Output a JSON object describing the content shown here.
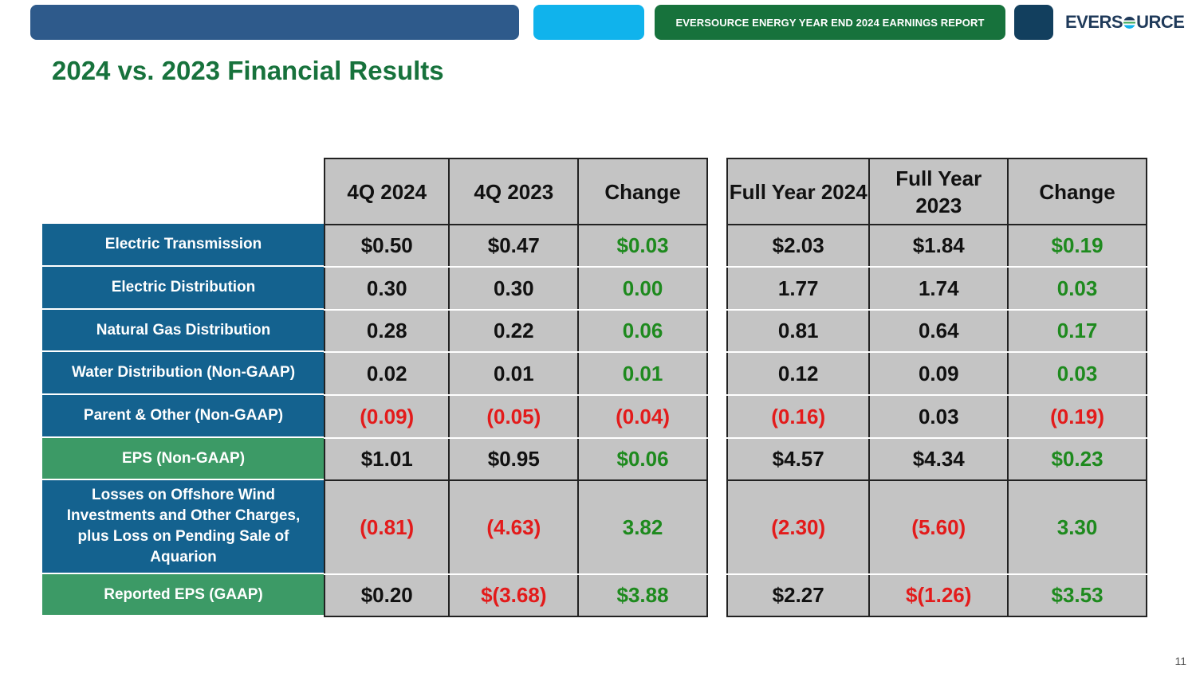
{
  "header": {
    "report_label": "EVERSOURCE ENERGY YEAR END 2024 EARNINGS REPORT",
    "logo_text_left": "EVERS",
    "logo_text_right": "URCE"
  },
  "title": "2024 vs. 2023 Financial Results",
  "page_number": "11",
  "quarter_table": {
    "headers": [
      "4Q 2024",
      "4Q 2023",
      "Change"
    ]
  },
  "year_table": {
    "headers": [
      "Full Year 2024",
      "Full Year 2023",
      "Change"
    ]
  },
  "rows": [
    {
      "label": "Electric Transmission",
      "q": [
        "$0.50",
        "$0.47",
        "$0.03"
      ],
      "y": [
        "$2.03",
        "$1.84",
        "$0.19"
      ]
    },
    {
      "label": "Electric Distribution",
      "q": [
        "0.30",
        "0.30",
        "0.00"
      ],
      "y": [
        "1.77",
        "1.74",
        "0.03"
      ]
    },
    {
      "label": "Natural Gas Distribution",
      "q": [
        "0.28",
        "0.22",
        "0.06"
      ],
      "y": [
        "0.81",
        "0.64",
        "0.17"
      ]
    },
    {
      "label": "Water Distribution (Non-GAAP)",
      "q": [
        "0.02",
        "0.01",
        "0.01"
      ],
      "y": [
        "0.12",
        "0.09",
        "0.03"
      ]
    },
    {
      "label": "Parent & Other (Non-GAAP)",
      "q": [
        "(0.09)",
        "(0.05)",
        "(0.04)"
      ],
      "y": [
        "(0.16)",
        "0.03",
        "(0.19)"
      ]
    },
    {
      "label": "EPS (Non-GAAP)",
      "q": [
        "$1.01",
        "$0.95",
        "$0.06"
      ],
      "y": [
        "$4.57",
        "$4.34",
        "$0.23"
      ]
    },
    {
      "label": "Losses on Offshore Wind Investments and Other Charges, plus Loss on Pending Sale of Aquarion",
      "q": [
        "(0.81)",
        "(4.63)",
        "3.82"
      ],
      "y": [
        "(2.30)",
        "(5.60)",
        "3.30"
      ]
    },
    {
      "label": "Reported EPS (GAAP)",
      "q": [
        "$0.20",
        "$(3.68)",
        "$3.88"
      ],
      "y": [
        "$2.27",
        "$(1.26)",
        "$3.53"
      ]
    }
  ],
  "colors": {
    "positive": "#1e8a1e",
    "negative": "#e31b1b",
    "label_blue": "#14628f",
    "label_green": "#3c9a66",
    "title_green": "#17723c"
  }
}
